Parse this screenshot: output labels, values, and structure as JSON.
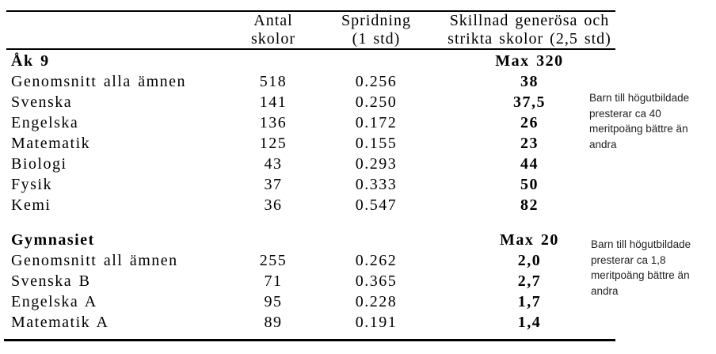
{
  "table": {
    "headers": {
      "antal_line1": "Antal",
      "antal_line2": "skolor",
      "spridning_line1": "Spridning",
      "spridning_line2": "(1 std)",
      "skillnad_line1": "Skillnad generösa och",
      "skillnad_line2": "strikta skolor (2,5 std)"
    },
    "sections": [
      {
        "title": "Åk 9",
        "max_label": "Max 320",
        "rows": [
          {
            "label": "Genomsnitt alla ämnen",
            "antal": "518",
            "spridning": "0.256",
            "skillnad": "38"
          },
          {
            "label": "Svenska",
            "antal": "141",
            "spridning": "0.250",
            "skillnad": "37,5"
          },
          {
            "label": "Engelska",
            "antal": "136",
            "spridning": "0.172",
            "skillnad": "26"
          },
          {
            "label": "Matematik",
            "antal": "125",
            "spridning": "0.155",
            "skillnad": "23"
          },
          {
            "label": "Biologi",
            "antal": "43",
            "spridning": "0.293",
            "skillnad": "44"
          },
          {
            "label": "Fysik",
            "antal": "37",
            "spridning": "0.333",
            "skillnad": "50"
          },
          {
            "label": "Kemi",
            "antal": "36",
            "spridning": "0.547",
            "skillnad": "82"
          }
        ]
      },
      {
        "title": "Gymnasiet",
        "max_label": "Max 20",
        "rows": [
          {
            "label": "Genomsnitt all ämnen",
            "antal": "255",
            "spridning": "0.262",
            "skillnad": "2,0"
          },
          {
            "label": "Svenska B",
            "antal": "71",
            "spridning": "0.365",
            "skillnad": "2,7"
          },
          {
            "label": "Engelska A",
            "antal": "95",
            "spridning": "0.228",
            "skillnad": "1,7"
          },
          {
            "label": "Matematik A",
            "antal": "89",
            "spridning": "0.191",
            "skillnad": "1,4"
          }
        ]
      }
    ]
  },
  "annotations": [
    {
      "lines": [
        "Barn till högutbildade",
        "presterar ca 40",
        "meritpoäng bättre än",
        "andra"
      ]
    },
    {
      "lines": [
        "Barn till högutbildade",
        "presterar ca 1,8",
        "meritpoäng bättre än",
        "andra"
      ]
    }
  ],
  "colors": {
    "background": "#ffffff",
    "table_text": "#000000",
    "rule": "#000000",
    "annotation_text": "#1f1f1f"
  }
}
